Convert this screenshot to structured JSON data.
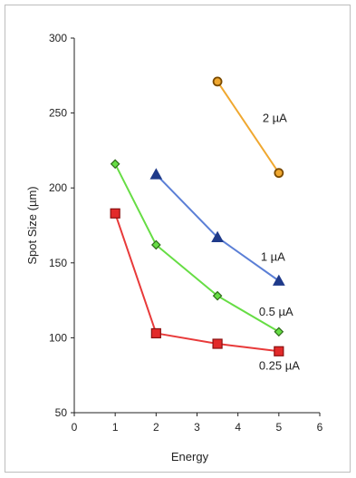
{
  "chart_data": {
    "type": "line",
    "xlabel": "Energy",
    "ylabel": "Spot Size (µm)",
    "xlim": [
      0,
      6
    ],
    "ylim": [
      50,
      300
    ],
    "x_ticks": [
      "0",
      "1",
      "2",
      "3",
      "4",
      "5",
      "6"
    ],
    "y_ticks": [
      "50",
      "100",
      "150",
      "200",
      "250",
      "300"
    ],
    "grid": false,
    "series": [
      {
        "name": "2 µA",
        "color": "#f0a830",
        "marker": "circle",
        "marker_fill": "#f0a830",
        "marker_stroke": "#7a4a00",
        "x": [
          3.5,
          5
        ],
        "y": [
          271,
          210
        ]
      },
      {
        "name": "1 µA",
        "color": "#5b7fd6",
        "marker": "triangle",
        "marker_fill": "#1f3a8a",
        "marker_stroke": "#1f3a8a",
        "x": [
          2,
          3.5,
          5
        ],
        "y": [
          209,
          167,
          138
        ]
      },
      {
        "name": "0.5 µA",
        "color": "#66dd44",
        "marker": "diamond",
        "marker_fill": "#66dd44",
        "marker_stroke": "#2f6b1a",
        "x": [
          1,
          2,
          3.5,
          5
        ],
        "y": [
          216,
          162,
          128,
          104
        ]
      },
      {
        "name": "0.25 µA",
        "color": "#e83a3a",
        "marker": "square",
        "marker_fill": "#e22a2a",
        "marker_stroke": "#8a1010",
        "x": [
          1,
          2,
          3.5,
          5
        ],
        "y": [
          183,
          103,
          96,
          91
        ]
      }
    ]
  }
}
